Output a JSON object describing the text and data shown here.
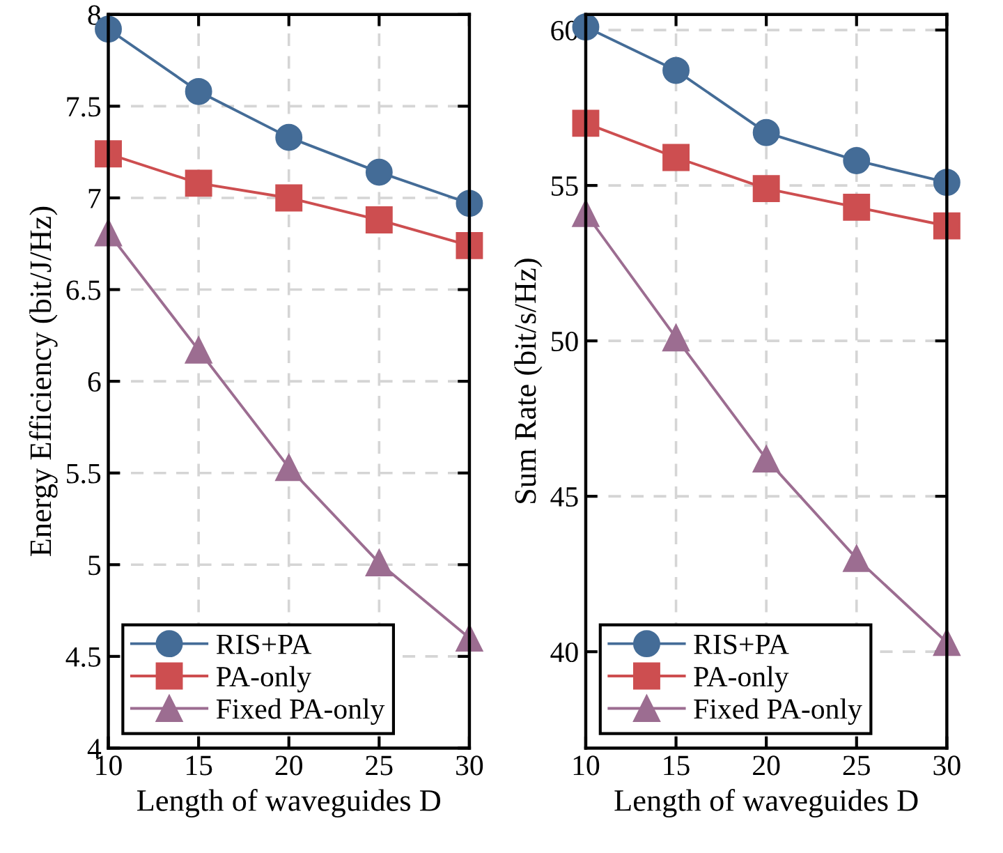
{
  "chart_data": [
    {
      "type": "line",
      "xlabel": "Length of waveguides D",
      "ylabel": "Energy Efficiency (bit/J/Hz)",
      "x": [
        10,
        15,
        20,
        25,
        30
      ],
      "xlim": [
        10,
        30
      ],
      "xticks": [
        10,
        15,
        20,
        25,
        30
      ],
      "ylim": [
        4,
        8
      ],
      "yticks": [
        4,
        4.5,
        5,
        5.5,
        6,
        6.5,
        7,
        7.5,
        8
      ],
      "grid": true,
      "legend": "bottom left",
      "series": [
        {
          "name": "RIS+PA",
          "color": "#446c97",
          "marker": "circle",
          "values": [
            7.92,
            7.58,
            7.33,
            7.14,
            6.97
          ]
        },
        {
          "name": "PA-only",
          "color": "#cd4e50",
          "marker": "square",
          "values": [
            7.24,
            7.08,
            7.0,
            6.88,
            6.74
          ]
        },
        {
          "name": "Fixed PA-only",
          "color": "#9c6d91",
          "marker": "triangle",
          "values": [
            6.81,
            6.17,
            5.53,
            5.01,
            4.6
          ]
        }
      ]
    },
    {
      "type": "line",
      "xlabel": "Length of waveguides D",
      "ylabel": "Sum Rate (bit/s/Hz)",
      "x": [
        10,
        15,
        20,
        25,
        30
      ],
      "xlim": [
        10,
        30
      ],
      "xticks": [
        10,
        15,
        20,
        25,
        30
      ],
      "ylim": [
        36.9,
        60.5
      ],
      "yticks": [
        40,
        45,
        50,
        55,
        60
      ],
      "grid": true,
      "legend": "bottom left",
      "series": [
        {
          "name": "RIS+PA",
          "color": "#446c97",
          "marker": "circle",
          "values": [
            60.1,
            58.7,
            56.7,
            55.8,
            55.1
          ]
        },
        {
          "name": "PA-only",
          "color": "#cd4e50",
          "marker": "square",
          "values": [
            57.0,
            55.9,
            54.9,
            54.3,
            53.7
          ]
        },
        {
          "name": "Fixed PA-only",
          "color": "#9c6d91",
          "marker": "triangle",
          "values": [
            54.1,
            50.1,
            46.2,
            43.0,
            40.3
          ]
        }
      ]
    }
  ]
}
